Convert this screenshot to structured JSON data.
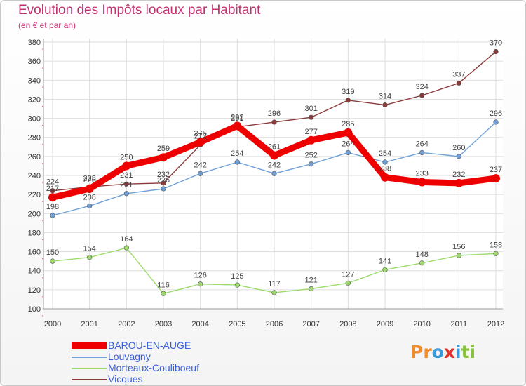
{
  "header": {
    "title": "Evolution des Impôts locaux par Habitant",
    "subtitle": "(en € et par an)"
  },
  "logo": {
    "letters": [
      "P",
      "r",
      "o",
      "x",
      "i",
      "t",
      "i"
    ],
    "colors": [
      "#f28c28",
      "#f28c28",
      "#3a9ad9",
      "#e0302a",
      "#3a9ad9",
      "#88c23b",
      "#88c23b"
    ]
  },
  "chart_data": {
    "type": "line",
    "title": "Evolution des Impôts locaux par Habitant",
    "subtitle": "(en € et par an)",
    "xlabel": "",
    "ylabel": "",
    "ylim": [
      100,
      380
    ],
    "ytick_step": 20,
    "grid": true,
    "legend_position": "bottom-left",
    "categories": [
      "2000",
      "2001",
      "2002",
      "2003",
      "2004",
      "2005",
      "2006",
      "2007",
      "2008",
      "2009",
      "2010",
      "2011",
      "2012"
    ],
    "series": [
      {
        "name": "BAROU-EN-AUGE",
        "color": "#ee0000",
        "values": [
          217,
          226,
          250,
          259,
          275,
          292,
          261,
          277,
          285,
          238,
          233,
          232,
          237
        ],
        "labels": [
          "217",
          "226",
          "250",
          "259",
          "275",
          "292",
          "261",
          "277",
          "285",
          "238",
          "233",
          "232",
          "237"
        ],
        "thick": true
      },
      {
        "name": "Louvagny",
        "color": "#6fa0d8",
        "values": [
          198,
          208,
          221,
          226,
          242,
          254,
          242,
          252,
          264,
          254,
          264,
          260,
          296
        ],
        "labels": [
          "198",
          "208",
          "221",
          "226",
          "242",
          "254",
          "242",
          "252",
          "264",
          "254",
          "264",
          "260",
          "296"
        ]
      },
      {
        "name": "Morteaux-Couliboeuf",
        "color": "#9edb6a",
        "values": [
          150,
          154,
          164,
          116,
          126,
          125,
          117,
          121,
          127,
          141,
          148,
          156,
          158
        ],
        "labels": [
          "150",
          "154",
          "164",
          "116",
          "126",
          "125",
          "117",
          "121",
          "127",
          "141",
          "148",
          "156",
          "158"
        ]
      },
      {
        "name": "Vicques",
        "color": "#8b3a3a",
        "values": [
          224,
          228,
          231,
          232,
          272,
          291,
          296,
          301,
          319,
          314,
          324,
          337,
          370
        ],
        "labels": [
          "224",
          "228",
          "231",
          "232",
          "272",
          "291",
          "296",
          "301",
          "319",
          "314",
          "324",
          "337",
          "370"
        ]
      }
    ]
  }
}
